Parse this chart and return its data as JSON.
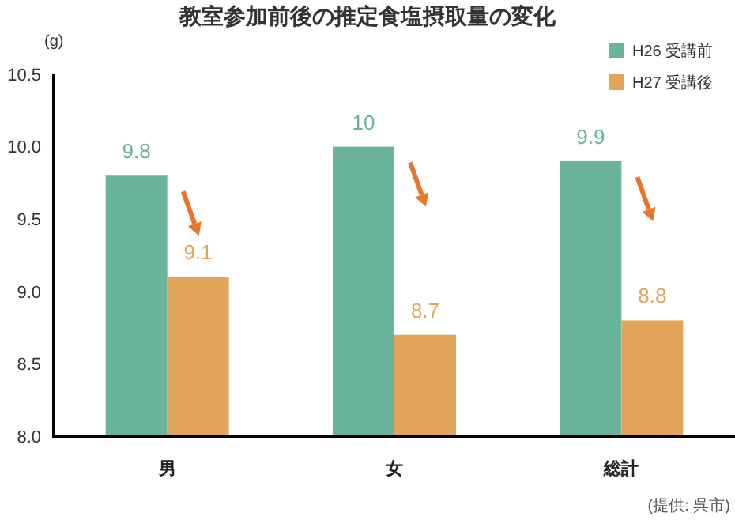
{
  "chart_data": {
    "type": "bar",
    "title": "教室参加前後の推定食塩摂取量の変化",
    "ylabel": "(g)",
    "categories": [
      "男",
      "女",
      "総計"
    ],
    "series": [
      {
        "name": "H26 受講前",
        "color": "#6ab39c",
        "values": [
          9.8,
          10,
          9.9
        ]
      },
      {
        "name": "H27 受講後",
        "color": "#e2a458",
        "values": [
          9.1,
          8.7,
          8.8
        ]
      }
    ],
    "ylim": [
      8,
      10.5
    ],
    "yticks": [
      {
        "value": 8,
        "label": "8.0"
      },
      {
        "value": 8.5,
        "label": "8.5"
      },
      {
        "value": 9,
        "label": "9.0"
      },
      {
        "value": 9.5,
        "label": "9.5"
      },
      {
        "value": 10,
        "label": "10.0"
      },
      {
        "value": 10.5,
        "label": "10.5"
      }
    ],
    "data_labels": true,
    "legend": "top right",
    "grid": false,
    "annotations": [
      "(提供: 呉市)"
    ]
  }
}
